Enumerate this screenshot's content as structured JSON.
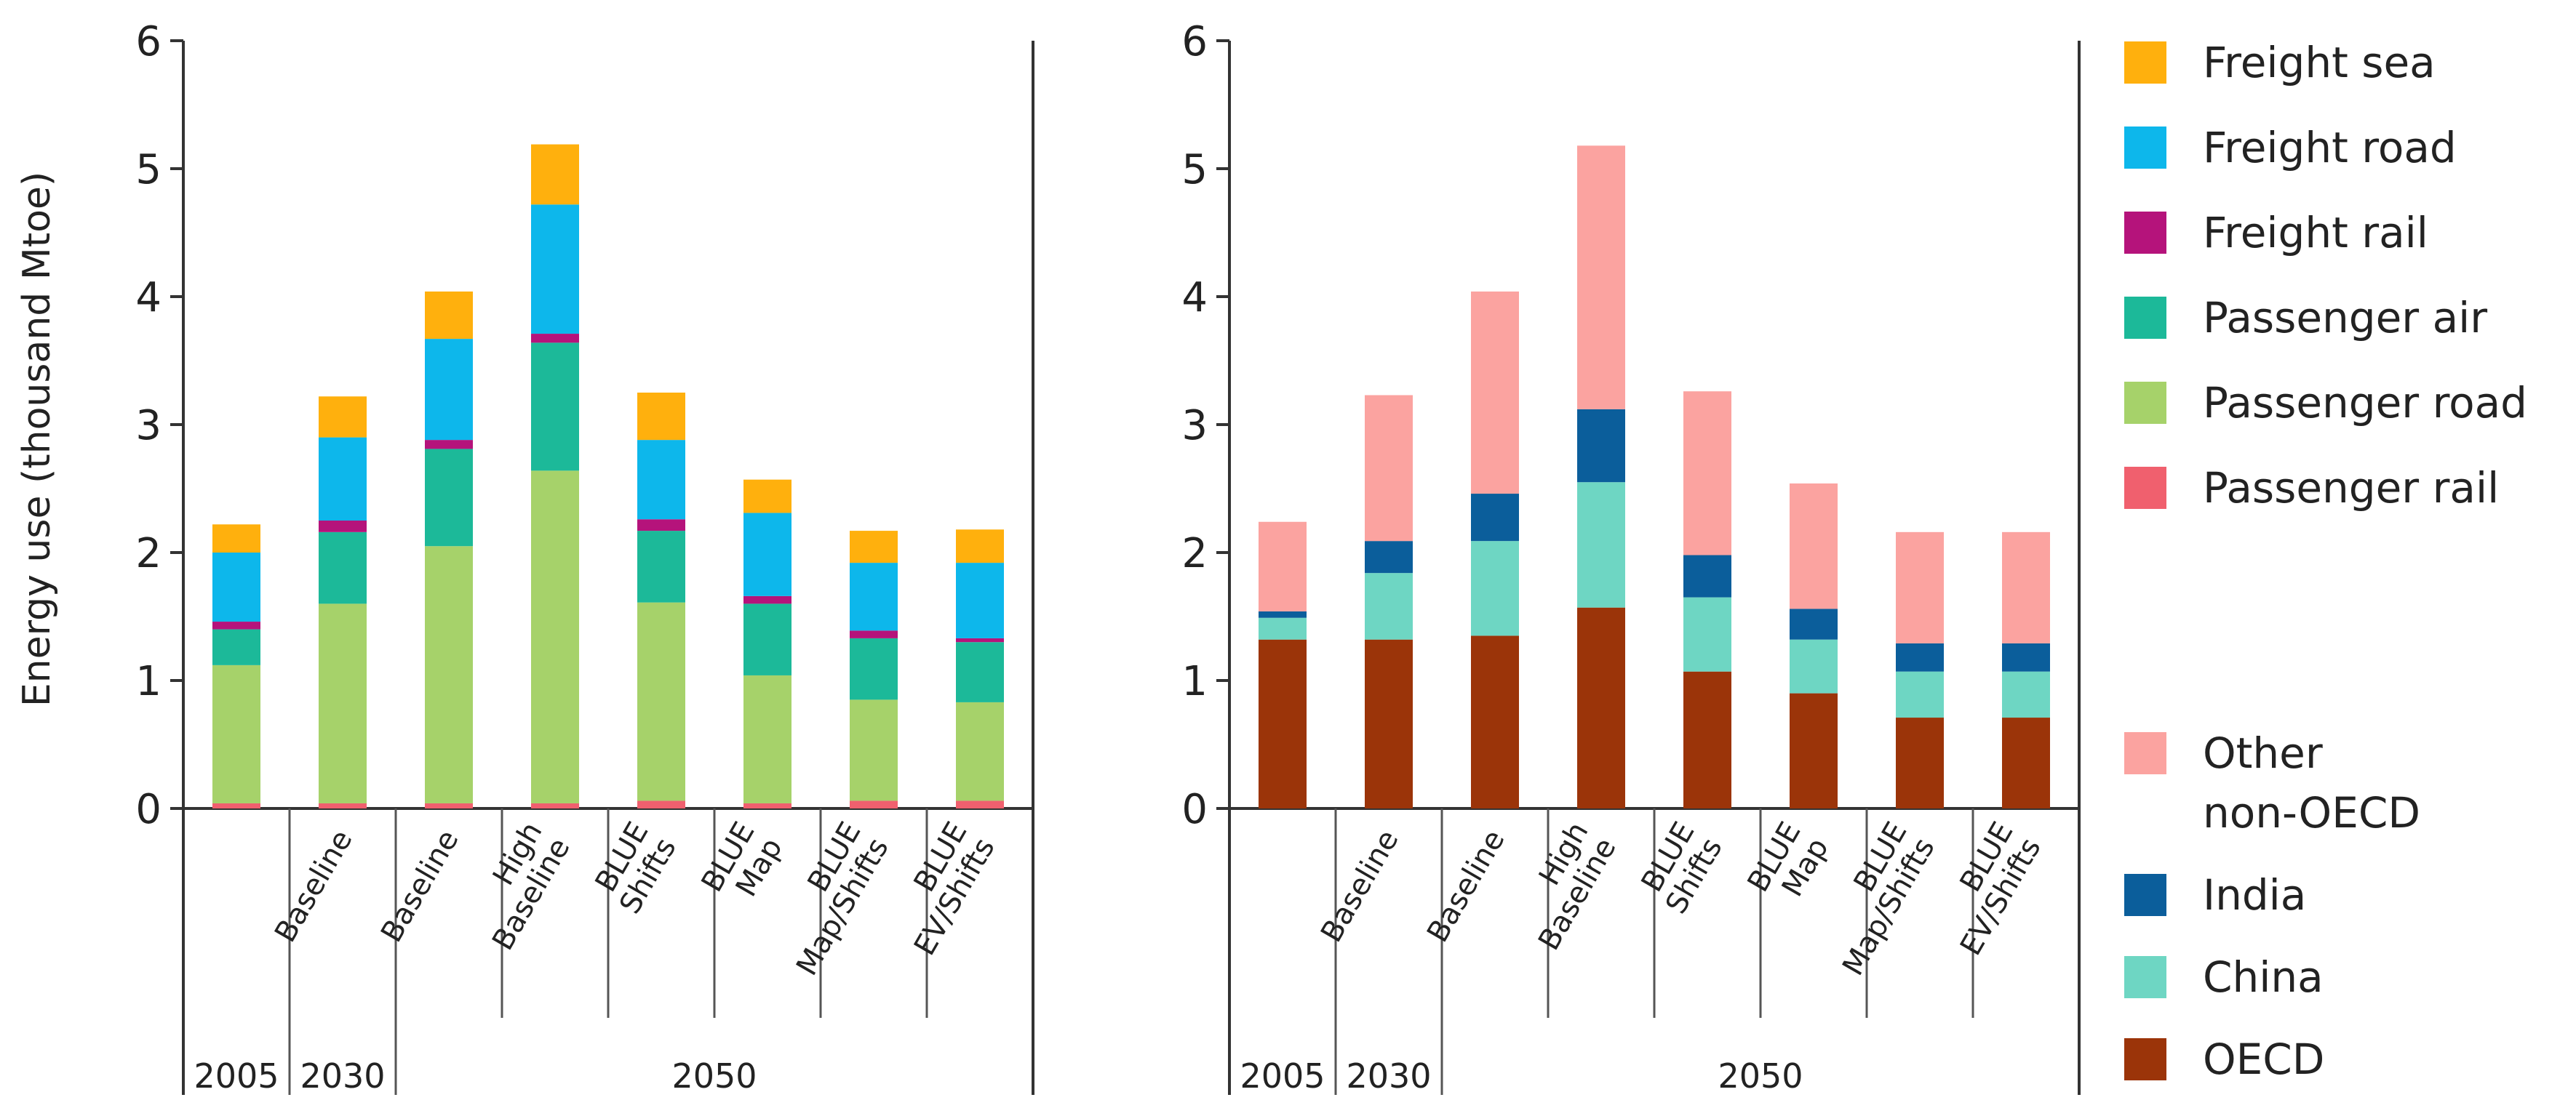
{
  "chart_data": [
    {
      "type": "bar",
      "stacked": true,
      "title": "",
      "ylabel": "Energy use (thousand Mtoe)",
      "xlabel": "",
      "ylim": [
        0,
        6
      ],
      "yticks": [
        0,
        1,
        2,
        3,
        4,
        5,
        6
      ],
      "grid": false,
      "categories": [
        "",
        "Baseline",
        "Baseline",
        "High Baseline",
        "BLUE Shifts",
        "BLUE Map",
        "BLUE Map/Shifts",
        "BLUE EV/Shifts"
      ],
      "year_groups": [
        {
          "label": "2005",
          "start": 0,
          "end": 0
        },
        {
          "label": "2030",
          "start": 1,
          "end": 1
        },
        {
          "label": "2050",
          "start": 2,
          "end": 7
        }
      ],
      "series": [
        {
          "name": "Passenger rail",
          "color": "#F0606E",
          "values": [
            0.04,
            0.04,
            0.04,
            0.04,
            0.06,
            0.04,
            0.06,
            0.06
          ]
        },
        {
          "name": "Passenger road",
          "color": "#A6D26A",
          "values": [
            1.08,
            1.56,
            2.01,
            2.6,
            1.55,
            1.0,
            0.79,
            0.77
          ]
        },
        {
          "name": "Passenger air",
          "color": "#1CB999",
          "values": [
            0.28,
            0.56,
            0.76,
            1.0,
            0.56,
            0.56,
            0.48,
            0.47
          ]
        },
        {
          "name": "Freight rail",
          "color": "#B5137B",
          "values": [
            0.06,
            0.09,
            0.07,
            0.07,
            0.09,
            0.06,
            0.06,
            0.03
          ]
        },
        {
          "name": "Freight road",
          "color": "#0DB7EB",
          "values": [
            0.54,
            0.65,
            0.79,
            1.01,
            0.62,
            0.65,
            0.53,
            0.59
          ]
        },
        {
          "name": "Freight sea",
          "color": "#FFB00D",
          "values": [
            0.22,
            0.32,
            0.37,
            0.47,
            0.37,
            0.26,
            0.25,
            0.26
          ]
        }
      ]
    },
    {
      "type": "bar",
      "stacked": true,
      "title": "",
      "ylabel": "",
      "xlabel": "",
      "ylim": [
        0,
        6
      ],
      "yticks": [
        0,
        1,
        2,
        3,
        4,
        5,
        6
      ],
      "grid": false,
      "categories": [
        "",
        "Baseline",
        "Baseline",
        "High Baseline",
        "BLUE Shifts",
        "BLUE Map",
        "BLUE Map/Shifts",
        "BLUE EV/Shifts"
      ],
      "year_groups": [
        {
          "label": "2005",
          "start": 0,
          "end": 0
        },
        {
          "label": "2030",
          "start": 1,
          "end": 1
        },
        {
          "label": "2050",
          "start": 2,
          "end": 7
        }
      ],
      "series": [
        {
          "name": "OECD",
          "color": "#9B3409",
          "values": [
            1.32,
            1.32,
            1.35,
            1.57,
            1.07,
            0.9,
            0.71,
            0.71
          ]
        },
        {
          "name": "China",
          "color": "#6ED6C3",
          "values": [
            0.17,
            0.52,
            0.74,
            0.98,
            0.58,
            0.42,
            0.36,
            0.36
          ]
        },
        {
          "name": "India",
          "color": "#0B5E9B",
          "values": [
            0.05,
            0.25,
            0.37,
            0.57,
            0.33,
            0.24,
            0.22,
            0.22
          ]
        },
        {
          "name": "Other non-OECD",
          "color": "#FBA3A0",
          "values": [
            0.7,
            1.14,
            1.58,
            2.06,
            1.28,
            0.98,
            0.87,
            0.87
          ]
        }
      ]
    }
  ],
  "legend_top": {
    "items": [
      {
        "label": "Freight sea",
        "color": "#FFB00D"
      },
      {
        "label": "Freight road",
        "color": "#0DB7EB"
      },
      {
        "label": "Freight rail",
        "color": "#B5137B"
      },
      {
        "label": "Passenger air",
        "color": "#1CB999"
      },
      {
        "label": "Passenger road",
        "color": "#A6D26A"
      },
      {
        "label": "Passenger rail",
        "color": "#F0606E"
      }
    ]
  },
  "legend_bottom": {
    "items": [
      {
        "label_lines": [
          "Other",
          "non-OECD"
        ],
        "color": "#FBA3A0"
      },
      {
        "label_lines": [
          "India"
        ],
        "color": "#0B5E9B"
      },
      {
        "label_lines": [
          "China"
        ],
        "color": "#6ED6C3"
      },
      {
        "label_lines": [
          "OECD"
        ],
        "color": "#9B3409"
      }
    ]
  }
}
